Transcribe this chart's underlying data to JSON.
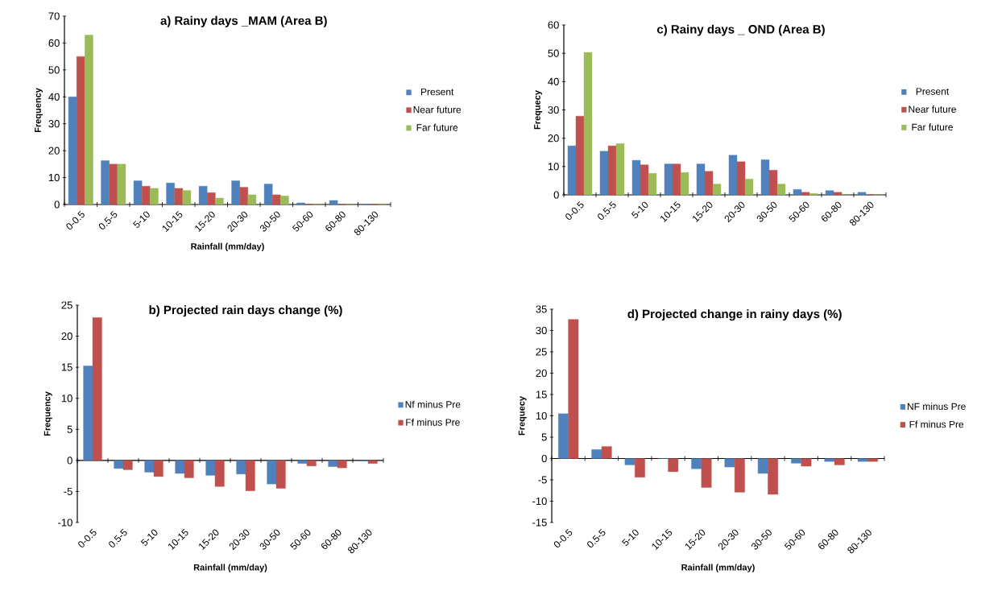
{
  "chart_data": [
    {
      "type": "bar",
      "title": "a) Rainy days _MAM (Area B)",
      "xlabel": "Rainfall  (mm/day)",
      "ylabel": "Frequency",
      "categories": [
        "0-0.5",
        "0.5-5",
        "5-10",
        "10-15",
        "15-20",
        "20-30",
        "30-50",
        "50-60",
        "60-80",
        "80-130"
      ],
      "series": [
        {
          "name": "Present",
          "color": "#4f81bd",
          "values": [
            40,
            16.3,
            8.8,
            8,
            6.8,
            8.8,
            7.6,
            0.6,
            1.5,
            0
          ]
        },
        {
          "name": "Near future",
          "color": "#c0504d",
          "values": [
            55,
            15,
            6.8,
            6,
            4.4,
            6.4,
            3.6,
            0,
            0,
            0
          ]
        },
        {
          "name": "Far future",
          "color": "#9bbb59",
          "values": [
            63,
            15,
            6,
            5.2,
            2.4,
            3.6,
            3.2,
            0,
            0,
            0
          ]
        }
      ],
      "ylim": [
        0,
        70
      ],
      "yticks": [
        0,
        10,
        20,
        30,
        40,
        50,
        60,
        70
      ],
      "legend": "right"
    },
    {
      "type": "bar",
      "title": "c) Rainy days _ OND (Area B)",
      "ylabel": "Frequecy",
      "categories": [
        "0-0.5",
        "0.5-5",
        "5-10",
        "10-15",
        "15-20",
        "20-30",
        "30-50",
        "50-60",
        "60-80",
        "80-130"
      ],
      "series": [
        {
          "name": "Present",
          "color": "#4f81bd",
          "values": [
            17.3,
            15.4,
            12.2,
            10.9,
            10.9,
            14,
            12.4,
            1.9,
            1.5,
            0.9
          ]
        },
        {
          "name": "Near future",
          "color": "#c0504d",
          "values": [
            27.8,
            17.3,
            10.6,
            10.9,
            8.3,
            11.7,
            8.7,
            0.9,
            0.9,
            0
          ]
        },
        {
          "name": "Far future",
          "color": "#9bbb59",
          "values": [
            50.3,
            18.1,
            7.6,
            7.9,
            3.8,
            5.6,
            3.8,
            0.5,
            0,
            0
          ]
        }
      ],
      "ylim": [
        0,
        60
      ],
      "yticks": [
        0,
        10,
        20,
        30,
        40,
        50,
        60
      ],
      "legend": "right"
    },
    {
      "type": "bar",
      "title": "b) Projected rain days change (%)",
      "xlabel": "Rainfall  (mm/day)",
      "ylabel": "Frequency",
      "categories": [
        "0-0.5",
        "0.5-5",
        "5-10",
        "10-15",
        "15-20",
        "20-30",
        "30-50",
        "50-60",
        "60-80",
        "80-130"
      ],
      "series": [
        {
          "name": "Nf minus Pre",
          "color": "#4f81bd",
          "values": [
            15.2,
            -1.3,
            -1.9,
            -2.1,
            -2.4,
            -2.2,
            -3.8,
            -0.5,
            -1,
            -0.1
          ]
        },
        {
          "name": "Ff minus Pre",
          "color": "#c0504d",
          "values": [
            23,
            -1.5,
            -2.6,
            -2.8,
            -4.2,
            -4.9,
            -4.5,
            -0.9,
            -1.2,
            -0.5
          ]
        }
      ],
      "ylim": [
        -10,
        25
      ],
      "yticks": [
        -10,
        -5,
        0,
        5,
        10,
        15,
        20,
        25
      ],
      "legend": "right"
    },
    {
      "type": "bar",
      "title": "d) Projected change in rainy days (%)",
      "xlabel": "Rainfall  (mm/day)",
      "ylabel": "Frequecy",
      "categories": [
        "0-0.5",
        "0.5-5",
        "5-10",
        "10-15",
        "15-20",
        "20-30",
        "30-50",
        "50-60",
        "60-80",
        "80-130"
      ],
      "series": [
        {
          "name": "NF minus Pre",
          "color": "#4f81bd",
          "values": [
            10.5,
            2.1,
            -1.5,
            0,
            -2.4,
            -2,
            -3.5,
            -1.1,
            -0.7,
            -0.7
          ]
        },
        {
          "name": "Ff minus Pre",
          "color": "#c0504d",
          "values": [
            32.6,
            2.8,
            -4.4,
            -3.1,
            -6.8,
            -7.9,
            -8.4,
            -1.8,
            -1.5,
            -0.7
          ]
        }
      ],
      "ylim": [
        -15,
        35
      ],
      "yticks": [
        -15,
        -10,
        -5,
        0,
        5,
        10,
        15,
        20,
        25,
        30,
        35
      ],
      "legend": "right"
    }
  ]
}
